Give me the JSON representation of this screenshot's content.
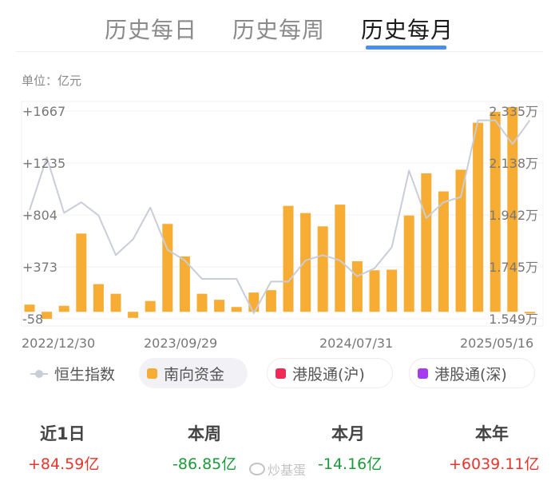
{
  "tabs": [
    {
      "label": "历史每日"
    },
    {
      "label": "历史每周"
    },
    {
      "label": "历史每月"
    }
  ],
  "unit_label": "单位：亿元",
  "chart_data": {
    "type": "bar",
    "y_left_ticks": [
      "+1667",
      "+1235",
      "+804",
      "+373",
      "-58"
    ],
    "y_left_range": [
      -58,
      1667
    ],
    "y_right_ticks": [
      "2.335万",
      "2.138万",
      "1.942万",
      "1.745万",
      "1.549万"
    ],
    "y_right_range": [
      1.549,
      2.335
    ],
    "x_tick_labels": [
      "2022/12/30",
      "2023/09/29",
      "2024/07/31",
      "2025/05/16"
    ],
    "series": [
      {
        "name": "南向资金",
        "color": "#f7ac33",
        "values": [
          60,
          -58,
          50,
          650,
          230,
          150,
          -50,
          90,
          730,
          460,
          150,
          100,
          40,
          160,
          180,
          880,
          820,
          710,
          890,
          420,
          345,
          350,
          800,
          1150,
          1000,
          1180,
          1570,
          1660,
          1700,
          -5
        ]
      },
      {
        "name": "恒生指数",
        "color": "#c9cdd9",
        "values": [
          1.96,
          2.16,
          1.95,
          1.99,
          1.94,
          1.79,
          1.85,
          1.97,
          1.81,
          1.77,
          1.7,
          1.7,
          1.7,
          1.57,
          1.69,
          1.69,
          1.77,
          1.79,
          1.77,
          1.71,
          1.74,
          1.82,
          2.11,
          1.93,
          1.99,
          2.01,
          2.3,
          2.3,
          2.21,
          2.3
        ]
      }
    ]
  },
  "legend": [
    {
      "label": "恒生指数",
      "color": "#c9cdd9"
    },
    {
      "label": "南向资金",
      "color": "#f7ac33"
    },
    {
      "label": "港股通(沪)",
      "color": "#f12a55"
    },
    {
      "label": "港股通(深)",
      "color": "#a53cf0"
    }
  ],
  "stats": [
    {
      "label": "近1日",
      "value": "+84.59亿",
      "trend": "up"
    },
    {
      "label": "本周",
      "value": "-86.85亿",
      "trend": "down"
    },
    {
      "label": "本月",
      "value": "-14.16亿",
      "trend": "down"
    },
    {
      "label": "本年",
      "value": "+6039.11亿",
      "trend": "up"
    }
  ],
  "watermark": "炒基蛋"
}
